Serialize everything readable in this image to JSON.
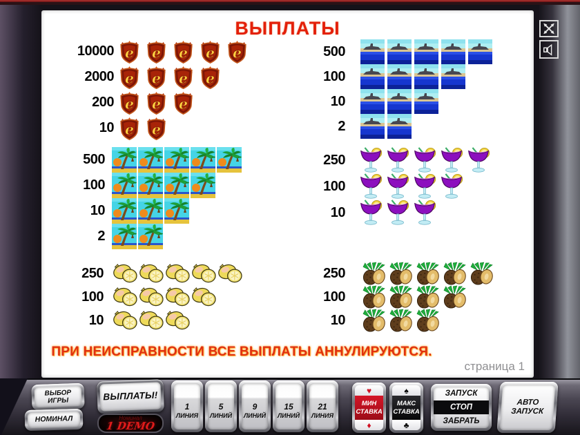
{
  "screen": {
    "title": "ВЫПЛАТЫ",
    "warning": "ПРИ НЕИСПРАВНОСТИ ВСЕ ВЫПЛАТЫ АННУЛИРУЮТСЯ.",
    "page_label": "страница 1"
  },
  "paytable": {
    "sections": [
      {
        "symbol": "badge",
        "icon": "resident-e-badge-icon",
        "rows": [
          {
            "value": "10000",
            "count": 5
          },
          {
            "value": "2000",
            "count": 4
          },
          {
            "value": "200",
            "count": 3
          },
          {
            "value": "10",
            "count": 2
          }
        ]
      },
      {
        "symbol": "ship",
        "icon": "ship-scene-icon",
        "rows": [
          {
            "value": "500",
            "count": 5
          },
          {
            "value": "100",
            "count": 4
          },
          {
            "value": "10",
            "count": 3
          },
          {
            "value": "2",
            "count": 2
          }
        ]
      },
      {
        "symbol": "palm",
        "icon": "palm-island-icon",
        "rows": [
          {
            "value": "500",
            "count": 5
          },
          {
            "value": "100",
            "count": 4
          },
          {
            "value": "10",
            "count": 3
          },
          {
            "value": "2",
            "count": 2
          }
        ]
      },
      {
        "symbol": "cocktail",
        "icon": "cocktail-icon",
        "rows": [
          {
            "value": "250",
            "count": 5
          },
          {
            "value": "100",
            "count": 4
          },
          {
            "value": "10",
            "count": 3
          }
        ]
      },
      {
        "symbol": "lemon",
        "icon": "lemon-icon",
        "rows": [
          {
            "value": "250",
            "count": 5
          },
          {
            "value": "100",
            "count": 4
          },
          {
            "value": "10",
            "count": 3
          }
        ]
      },
      {
        "symbol": "pineapple",
        "icon": "pineapple-icon",
        "rows": [
          {
            "value": "250",
            "count": 5
          },
          {
            "value": "100",
            "count": 4
          },
          {
            "value": "10",
            "count": 3
          }
        ]
      }
    ]
  },
  "panel": {
    "select_game": {
      "line1": "ВЫБОР",
      "line2": "ИГРЫ"
    },
    "nominal": {
      "label": "НОМИНАЛ"
    },
    "payouts": {
      "label": "ВЫПЛАТЫ!"
    },
    "lcd": {
      "label": "Номинал",
      "value": "1 DEMO"
    },
    "lines": [
      {
        "num": "1",
        "word": "ЛИНИЯ"
      },
      {
        "num": "5",
        "word": "ЛИНИЙ"
      },
      {
        "num": "9",
        "word": "ЛИНИЙ"
      },
      {
        "num": "15",
        "word": "ЛИНИЙ"
      },
      {
        "num": "21",
        "word": "ЛИНИЯ"
      }
    ],
    "min_bet": {
      "line1": "МИН",
      "line2": "СТАВКА",
      "suit_top": "♥",
      "suit_bottom": "♦"
    },
    "max_bet": {
      "line1": "МАКС",
      "line2": "СТАВКА",
      "suit_top": "♠",
      "suit_bottom": "♣"
    },
    "start": {
      "line1": "ЗАПУСК",
      "line2": "СТОП",
      "line3": "ЗАБРАТЬ"
    },
    "auto_start": {
      "line1": "АВТО",
      "line2": "ЗАПУСК"
    }
  },
  "colors": {
    "title_red": "#e3200a",
    "warning_red": "#e03010",
    "lcd_red": "#e11b1b",
    "min_bet_red": "#c11022",
    "screen_bg": "#ffffff",
    "body_dark": "#151219"
  }
}
